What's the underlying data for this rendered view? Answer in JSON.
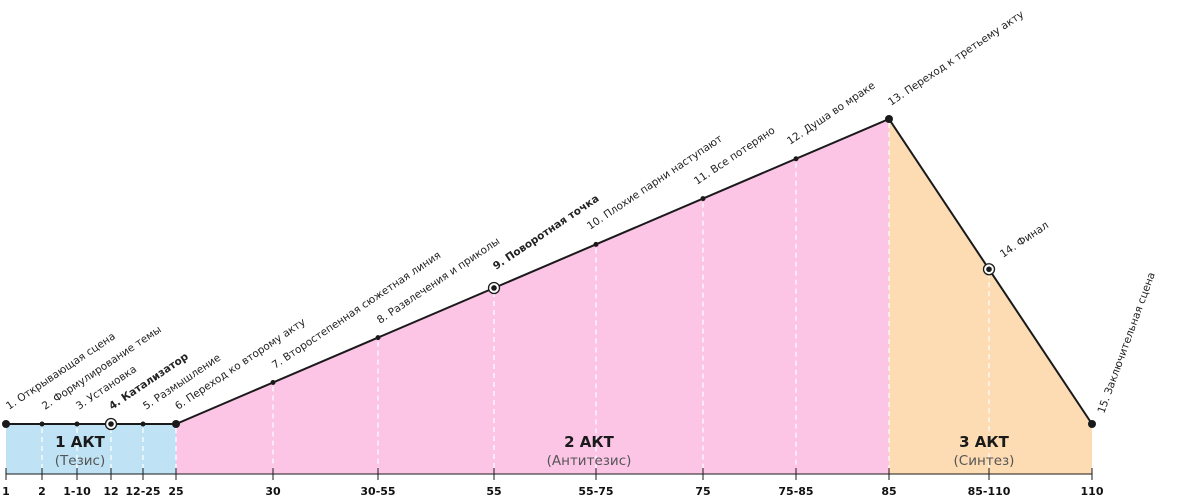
{
  "colors": {
    "act1": "#bfe3f5",
    "act2": "#fcc5e6",
    "act3": "#fddcb4",
    "line": "#1a1a1a",
    "guide": "#ffffff"
  },
  "acts": [
    {
      "title": "1 АКТ",
      "subtitle": "(Тезис)",
      "color": "act1"
    },
    {
      "title": "2 АКТ",
      "subtitle": "(Антитезис)",
      "color": "act2"
    },
    {
      "title": "3 АКТ",
      "subtitle": "(Синтез)",
      "color": "act3"
    }
  ],
  "ticks": [
    "1",
    "2",
    "1-10",
    "12",
    "12-25",
    "25",
    "30",
    "30-55",
    "55",
    "55-75",
    "75",
    "75-85",
    "85",
    "85-110",
    "110"
  ],
  "beats": [
    {
      "label": "1. Открывающая сцена",
      "bold": false,
      "marker": "dot"
    },
    {
      "label": "2. Формулирование темы",
      "bold": false,
      "marker": "small"
    },
    {
      "label": "3. Установка",
      "bold": false,
      "marker": "small"
    },
    {
      "label": "4. Катализатор",
      "bold": true,
      "marker": "ring"
    },
    {
      "label": "5. Размышление",
      "bold": false,
      "marker": "small"
    },
    {
      "label": "6. Переход ко второму акту",
      "bold": false,
      "marker": "dot"
    },
    {
      "label": "7. Второстепенная сюжетная линия",
      "bold": false,
      "marker": "small"
    },
    {
      "label": "8. Развлечения и приколы",
      "bold": false,
      "marker": "small"
    },
    {
      "label": "9. Поворотная точка",
      "bold": true,
      "marker": "ring"
    },
    {
      "label": "10. Плохие парни наступают",
      "bold": false,
      "marker": "small"
    },
    {
      "label": "11. Все потеряно",
      "bold": false,
      "marker": "small"
    },
    {
      "label": "12. Душа во мраке",
      "bold": false,
      "marker": "small"
    },
    {
      "label": "13. Переход к третьему акту",
      "bold": false,
      "marker": "dot"
    },
    {
      "label": "14. Финал",
      "bold": false,
      "marker": "ring"
    },
    {
      "label": "15. Заключительная сцена",
      "bold": false,
      "marker": "dot"
    }
  ]
}
